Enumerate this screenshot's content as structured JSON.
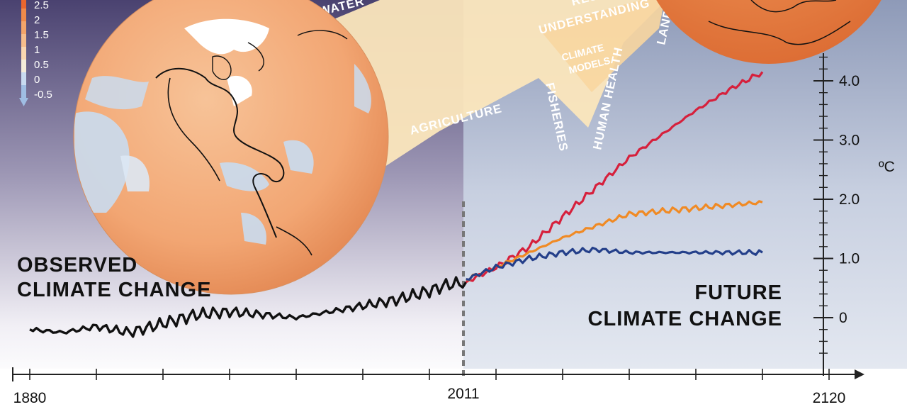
{
  "left_text": [
    "OBSERVED",
    "CLIMATE CHANGE"
  ],
  "right_text": [
    "FUTURE",
    "CLIMATE CHANGE"
  ],
  "colorbar": {
    "labels": [
      "2.5",
      "2",
      "1.5",
      "1",
      "0.5",
      "0",
      "-0.5"
    ],
    "colors": [
      "#e8662f",
      "#ef8a4a",
      "#f3a46a",
      "#f6bd8c",
      "#f9d6b0",
      "#f3ebd9",
      "#c8daf0",
      "#9fbde3"
    ]
  },
  "sectors": {
    "water": "WATER",
    "agriculture": "AGRICULTURE",
    "fisheries": "FISHERIES",
    "human_health": "HUMAN HEALTH",
    "land_use": "LAND U",
    "research": "RESE",
    "understanding": "UNDERSTANDING",
    "climate_models": [
      "CLIMATE",
      "MODELS"
    ]
  },
  "colors": {
    "observed": "#111111",
    "red": "#d6203c",
    "orange": "#f08a24",
    "blue": "#243f8a",
    "future_panel": "#d6dcea",
    "beam": "#fbe6bc",
    "globe": "#f4b07e",
    "globe_ocean_cool": "#c9dcf0"
  },
  "chart_data": {
    "type": "line",
    "x_ticks": [
      "1880",
      "2011",
      "2120"
    ],
    "xlim": [
      1880,
      2120
    ],
    "ylim": [
      -0.6,
      4.4
    ],
    "y_ticks": [
      "0",
      "1.0",
      "2.0",
      "3.0",
      "4.0"
    ],
    "y_unit": "ºC",
    "split_year": 2011,
    "series": [
      {
        "color": "#111111",
        "x": [
          1880,
          1890,
          1900,
          1910,
          1920,
          1930,
          1940,
          1950,
          1960,
          1970,
          1980,
          1990,
          2000,
          2005,
          2011
        ],
        "y": [
          -0.2,
          -0.25,
          -0.15,
          -0.25,
          -0.1,
          0.05,
          0.1,
          0.05,
          0.0,
          0.1,
          0.2,
          0.3,
          0.45,
          0.55,
          0.6
        ]
      },
      {
        "color": "#d6203c",
        "x": [
          2011,
          2020,
          2030,
          2040,
          2050,
          2060,
          2070,
          2080,
          2090,
          2100
        ],
        "y": [
          0.6,
          0.85,
          1.2,
          1.7,
          2.2,
          2.7,
          3.1,
          3.5,
          3.85,
          4.15
        ]
      },
      {
        "color": "#f08a24",
        "x": [
          2011,
          2020,
          2030,
          2040,
          2050,
          2060,
          2070,
          2080,
          2090,
          2100
        ],
        "y": [
          0.65,
          0.85,
          1.1,
          1.35,
          1.55,
          1.75,
          1.8,
          1.85,
          1.9,
          1.95
        ]
      },
      {
        "color": "#243f8a",
        "x": [
          2011,
          2020,
          2030,
          2040,
          2050,
          2060,
          2070,
          2080,
          2090,
          2100
        ],
        "y": [
          0.65,
          0.85,
          1.0,
          1.1,
          1.15,
          1.1,
          1.1,
          1.1,
          1.1,
          1.1
        ]
      }
    ]
  }
}
